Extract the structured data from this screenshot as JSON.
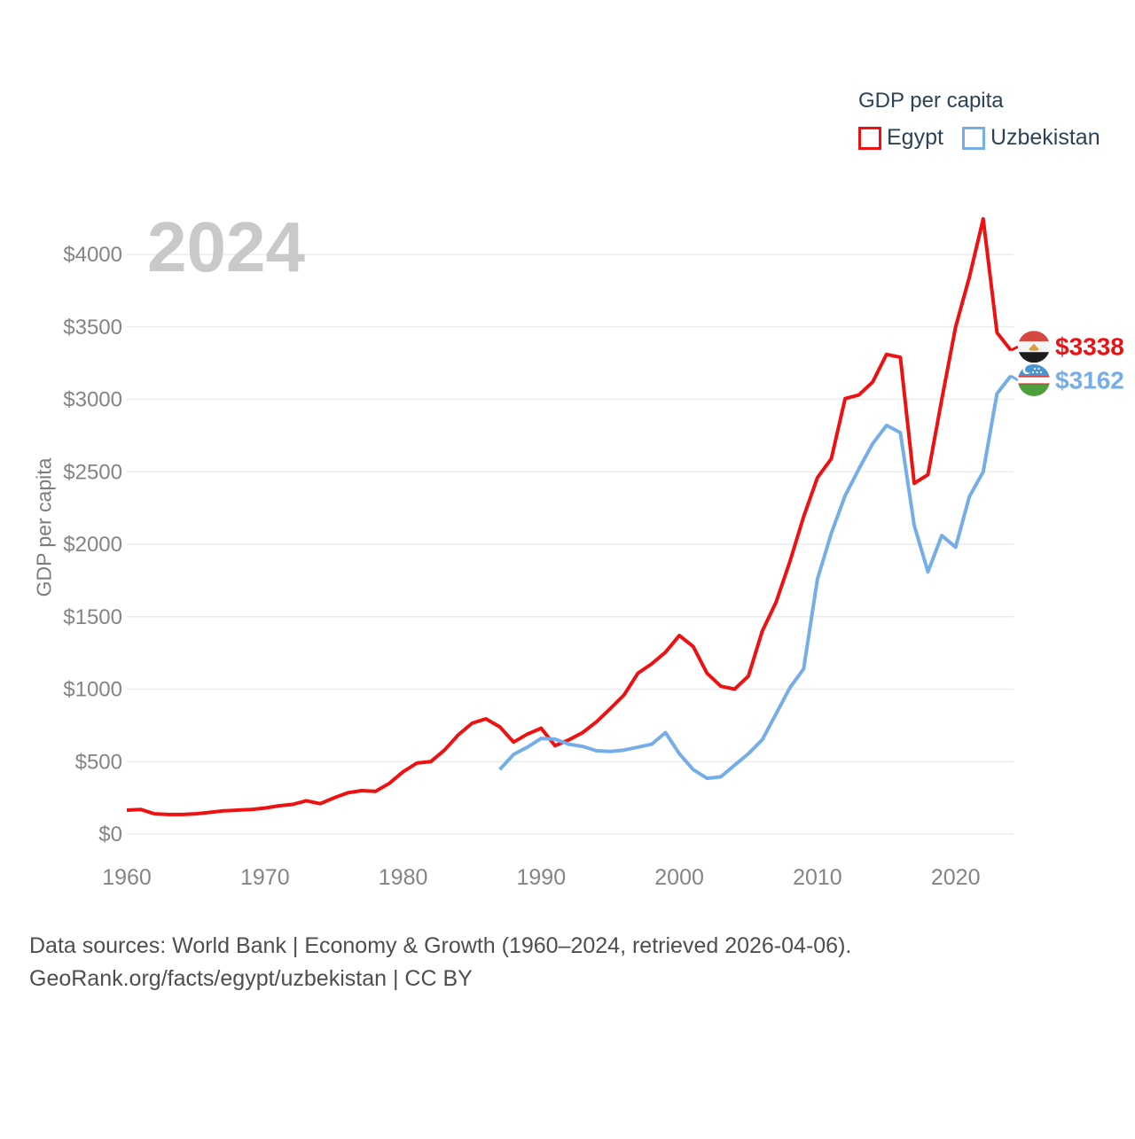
{
  "watermark": "2024",
  "legend": {
    "title": "GDP per capita",
    "items": [
      {
        "label": "Egypt",
        "color": "#ee1111"
      },
      {
        "label": "Uzbekistan",
        "color": "#74ade8"
      }
    ]
  },
  "end_labels": [
    {
      "value": "$3338",
      "color": "#ee1111",
      "flag": "egypt-flag-icon"
    },
    {
      "value": "$3162",
      "color": "#74ade8",
      "flag": "uzbekistan-flag-icon"
    }
  ],
  "flags": {
    "egypt": {
      "top": "#d6483f",
      "middle": "#f4f4f4",
      "bottom": "#1d1d1b",
      "emblem": "#d8a03c"
    },
    "uzbekistan": {
      "top": "#4a96d2",
      "middle": "#ffffff",
      "stripe": "#d63c3c",
      "bottom": "#4d9e3c"
    }
  },
  "footer": {
    "line1": "Data sources: World Bank | Economy & Growth (1960–2024, retrieved 2026-04-06).",
    "line2": "GeoRank.org/facts/egypt/uzbekistan | CC BY"
  },
  "chart_data": {
    "type": "line",
    "title": "GDP per capita",
    "xlabel": "",
    "ylabel": "GDP per capita",
    "ylim": [
      0,
      4300
    ],
    "yticks": [
      0,
      500,
      1000,
      1500,
      2000,
      2500,
      3000,
      3500,
      4000
    ],
    "ytick_prefix": "$",
    "xticks": [
      1960,
      1970,
      1980,
      1990,
      2000,
      2010,
      2020
    ],
    "xlim": [
      1960,
      2024
    ],
    "grid": true,
    "grid_color": "#ececec",
    "tick_color": "#848484",
    "legend_position": "top-right",
    "x_note": "annual values, one per year from start_year",
    "series": [
      {
        "name": "Egypt",
        "color": "#ee1111",
        "start_year": 1960,
        "end_year": 2024,
        "end_value_label": "$3338",
        "values": [
          165,
          170,
          140,
          135,
          135,
          140,
          150,
          160,
          165,
          170,
          180,
          195,
          205,
          230,
          210,
          250,
          285,
          300,
          295,
          350,
          430,
          490,
          500,
          580,
          685,
          765,
          795,
          740,
          635,
          690,
          730,
          610,
          650,
          700,
          775,
          865,
          960,
          1110,
          1175,
          1255,
          1370,
          1295,
          1110,
          1020,
          1000,
          1090,
          1400,
          1600,
          1880,
          2190,
          2460,
          2590,
          3005,
          3030,
          3120,
          3310,
          3290,
          2420,
          2480,
          3000,
          3500,
          3845,
          4245,
          3460,
          3338
        ]
      },
      {
        "name": "Uzbekistan",
        "color": "#74ade8",
        "start_year": 1987,
        "end_year": 2024,
        "end_value_label": "$3162",
        "values": [
          445,
          550,
          600,
          660,
          655,
          620,
          605,
          575,
          570,
          580,
          600,
          620,
          700,
          555,
          445,
          385,
          395,
          475,
          555,
          650,
          830,
          1010,
          1140,
          1760,
          2075,
          2335,
          2520,
          2695,
          2820,
          2770,
          2130,
          1810,
          2060,
          1980,
          2330,
          2500,
          3040,
          3162
        ]
      }
    ]
  }
}
